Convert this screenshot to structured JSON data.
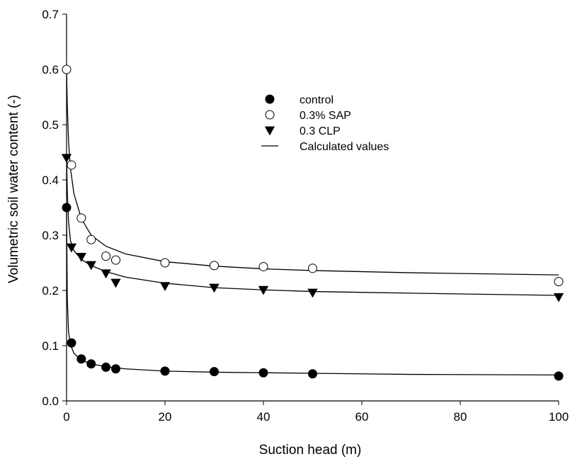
{
  "chart_data": {
    "type": "scatter",
    "title": "",
    "xlabel": "Suction head (m)",
    "ylabel": "Volumetric soil water content (-)",
    "xlim": [
      0,
      100
    ],
    "ylim": [
      0.0,
      0.7
    ],
    "x_ticks": [
      "0",
      "20",
      "40",
      "60",
      "80",
      "100"
    ],
    "y_ticks": [
      "0.0",
      "0.1",
      "0.2",
      "0.3",
      "0.4",
      "0.5",
      "0.6",
      "0.7"
    ],
    "grid": false,
    "legend_position": "upper-center",
    "x": [
      0,
      1,
      3,
      5,
      8,
      10,
      20,
      30,
      40,
      50,
      100
    ],
    "series": [
      {
        "name": "control",
        "marker": "filled-circle",
        "color": "#000000",
        "values": [
          0.35,
          0.105,
          0.076,
          0.067,
          0.061,
          0.058,
          0.054,
          0.053,
          0.051,
          0.049,
          0.045
        ]
      },
      {
        "name": "0.3% SAP",
        "marker": "open-circle",
        "color": "#000000",
        "values": [
          0.6,
          0.427,
          0.331,
          0.292,
          0.262,
          0.255,
          0.25,
          0.245,
          0.243,
          0.24,
          0.216
        ]
      },
      {
        "name": "0.3 CLP",
        "marker": "filled-down-triangle",
        "color": "#000000",
        "values": [
          0.44,
          0.278,
          0.261,
          0.246,
          0.231,
          0.214,
          0.208,
          0.205,
          0.201,
          0.196,
          0.188
        ]
      }
    ],
    "fitted_curves": [
      {
        "series": "control",
        "x": [
          0,
          0.15,
          0.4,
          0.8,
          1.5,
          3,
          5,
          8,
          12,
          20,
          30,
          40,
          50,
          70,
          100
        ],
        "y": [
          0.35,
          0.185,
          0.125,
          0.102,
          0.086,
          0.074,
          0.067,
          0.062,
          0.058,
          0.054,
          0.052,
          0.051,
          0.05,
          0.048,
          0.047
        ]
      },
      {
        "series": "0.3% SAP",
        "x": [
          0,
          0.15,
          0.4,
          0.8,
          1.5,
          3,
          5,
          8,
          12,
          20,
          30,
          40,
          50,
          70,
          100
        ],
        "y": [
          0.6,
          0.535,
          0.47,
          0.42,
          0.375,
          0.33,
          0.3,
          0.28,
          0.266,
          0.252,
          0.244,
          0.239,
          0.236,
          0.232,
          0.228
        ]
      },
      {
        "series": "0.3 CLP",
        "x": [
          0,
          0.15,
          0.4,
          0.8,
          1.5,
          3,
          5,
          8,
          12,
          20,
          30,
          40,
          50,
          70,
          100
        ],
        "y": [
          0.44,
          0.38,
          0.325,
          0.29,
          0.272,
          0.256,
          0.245,
          0.234,
          0.224,
          0.213,
          0.205,
          0.201,
          0.198,
          0.195,
          0.191
        ]
      }
    ],
    "legend": [
      {
        "label": "control",
        "marker": "filled-circle"
      },
      {
        "label": "0.3% SAP",
        "marker": "open-circle"
      },
      {
        "label": "0.3 CLP",
        "marker": "filled-down-triangle"
      },
      {
        "label": "Calculated values",
        "marker": "line"
      }
    ]
  }
}
